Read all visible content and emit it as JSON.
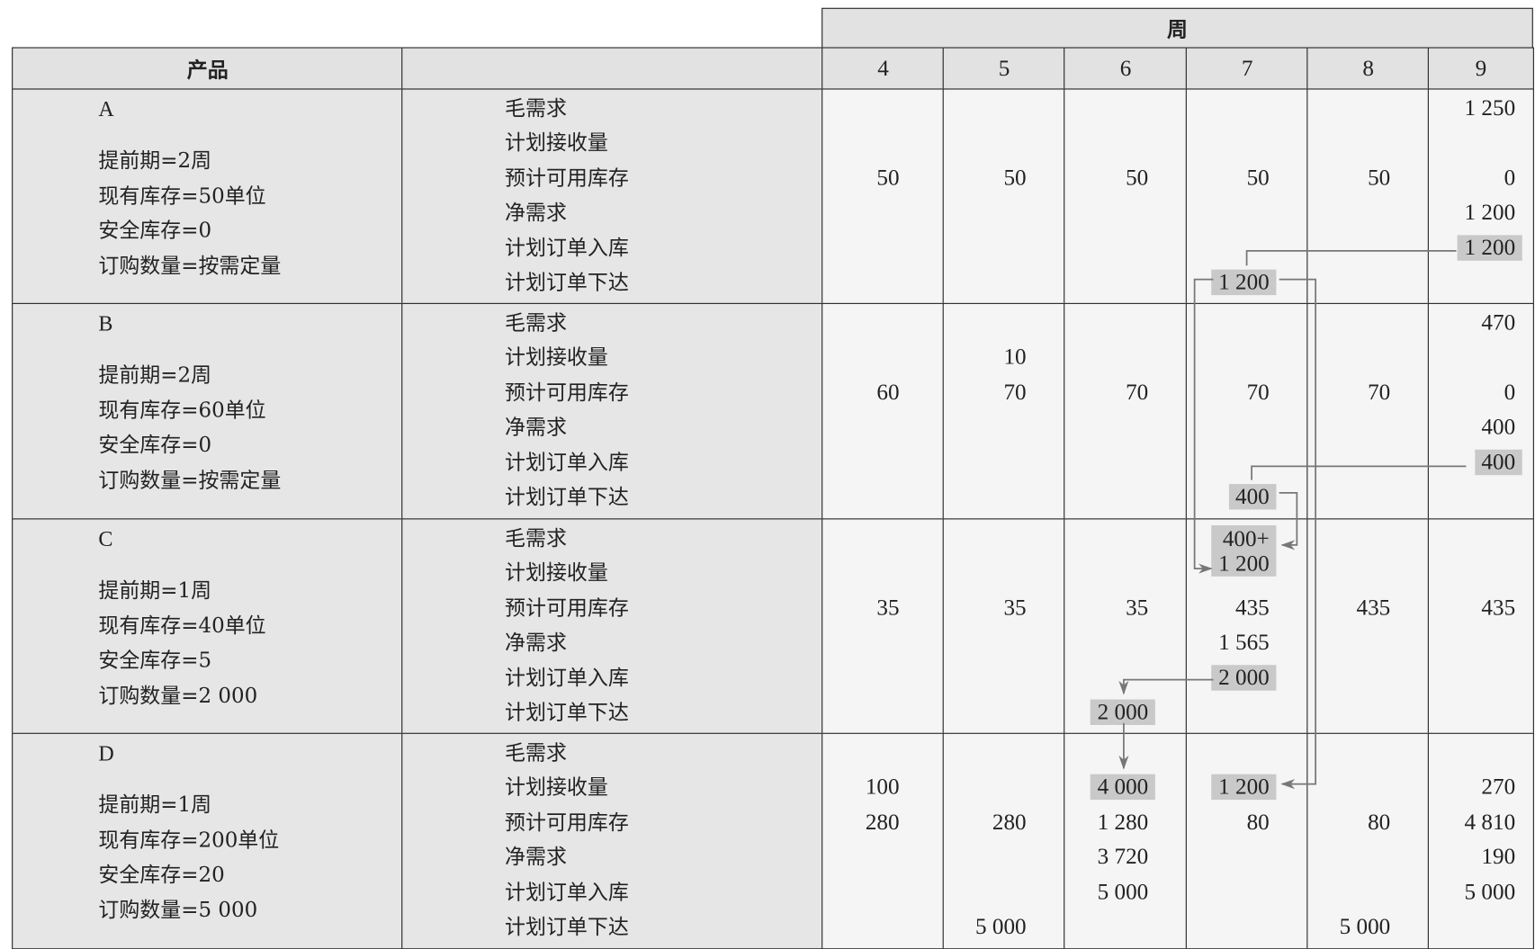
{
  "header": {
    "product_label": "产品",
    "blank_label": "",
    "week_label": "周",
    "weeks": [
      "4",
      "5",
      "6",
      "7",
      "8",
      "9"
    ]
  },
  "row_labels": [
    "毛需求",
    "计划接收量",
    "预计可用库存",
    "净需求",
    "计划订单入库",
    "计划订单下达"
  ],
  "colors": {
    "highlight": "#c9c9c9",
    "arrow": "#777777",
    "header_bg": "#e2e2e2",
    "cell_bg": "#f5f5f5"
  },
  "products": [
    {
      "name": "A",
      "params": [
        "提前期=2周",
        "现有库存=50单位",
        "安全库存=0",
        "订购数量=按需定量"
      ],
      "grid": [
        [
          "",
          "",
          "",
          "",
          "",
          "1 250"
        ],
        [
          "",
          "",
          "",
          "",
          "",
          ""
        ],
        [
          "50",
          "50",
          "50",
          "50",
          "50",
          "0"
        ],
        [
          "",
          "",
          "",
          "",
          "",
          "1 200"
        ],
        [
          "",
          "",
          "",
          "",
          "",
          {
            "v": "1 200",
            "highlight": true
          }
        ],
        [
          "",
          "",
          "",
          {
            "v": "1 200",
            "highlight": true
          },
          "",
          ""
        ]
      ]
    },
    {
      "name": "B",
      "params": [
        "提前期=2周",
        "现有库存=60单位",
        "安全库存=0",
        "订购数量=按需定量"
      ],
      "grid": [
        [
          "",
          "",
          "",
          "",
          "",
          "470"
        ],
        [
          "",
          "10",
          "",
          "",
          "",
          ""
        ],
        [
          "60",
          "70",
          "70",
          "70",
          "70",
          "0"
        ],
        [
          "",
          "",
          "",
          "",
          "",
          "400"
        ],
        [
          "",
          "",
          "",
          "",
          "",
          {
            "v": "400",
            "highlight": true
          }
        ],
        [
          "",
          "",
          "",
          {
            "v": "400",
            "highlight": true
          },
          "",
          ""
        ]
      ]
    },
    {
      "name": "C",
      "params": [
        "提前期=1周",
        "现有库存=40单位",
        "安全库存=5",
        "订购数量=2 000"
      ],
      "grid": [
        [
          "",
          "",
          "",
          {
            "v": "400+\n1 200",
            "highlight": true
          },
          "",
          ""
        ],
        [
          "",
          "",
          "",
          "",
          "",
          ""
        ],
        [
          "35",
          "35",
          "35",
          "435",
          "435",
          "435"
        ],
        [
          "",
          "",
          "",
          "1 565",
          "",
          ""
        ],
        [
          "",
          "",
          "",
          {
            "v": "2 000",
            "highlight": true
          },
          "",
          ""
        ],
        [
          "",
          "",
          {
            "v": "2 000",
            "highlight": true
          },
          "",
          "",
          ""
        ]
      ]
    },
    {
      "name": "D",
      "params": [
        "提前期=1周",
        "现有库存=200单位",
        "安全库存=20",
        "订购数量=5 000"
      ],
      "grid": [
        [
          "",
          "",
          "",
          "",
          "",
          ""
        ],
        [
          "100",
          "",
          {
            "v": "4 000",
            "highlight": true
          },
          {
            "v": "1 200",
            "highlight": true
          },
          "",
          "270"
        ],
        [
          "280",
          "280",
          "1 280",
          "80",
          "80",
          "4 810"
        ],
        [
          "",
          "",
          "3 720",
          "",
          "",
          "190"
        ],
        [
          "",
          "",
          "5 000",
          "",
          "",
          "5 000"
        ],
        [
          "",
          "5 000",
          "",
          "",
          "5 000",
          ""
        ]
      ]
    }
  ]
}
